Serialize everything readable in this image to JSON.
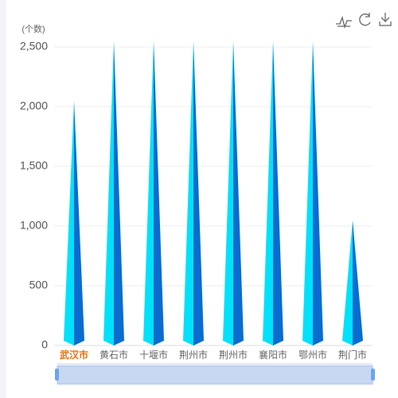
{
  "chart_data": {
    "type": "pyramid-bar",
    "y_axis_label": "(个数)",
    "categories": [
      "武汉市",
      "黄石市",
      "十堰市",
      "荆州市",
      "荆州市",
      "襄阳市",
      "鄂州市",
      "荆门市"
    ],
    "values": [
      2050,
      2550,
      2550,
      2550,
      2550,
      2550,
      2550,
      1050
    ],
    "colors": [
      "#00e1fc",
      "#0a6ccf"
    ],
    "ylim": [
      0,
      2500
    ],
    "yticks": [
      0,
      500,
      {
        "value": 1000,
        "label": "1,000"
      },
      {
        "value": 1500,
        "label": "1,500"
      },
      {
        "value": 2000,
        "label": "2,000"
      },
      {
        "value": 2500,
        "label": "2,500"
      }
    ],
    "grid": true
  }
}
